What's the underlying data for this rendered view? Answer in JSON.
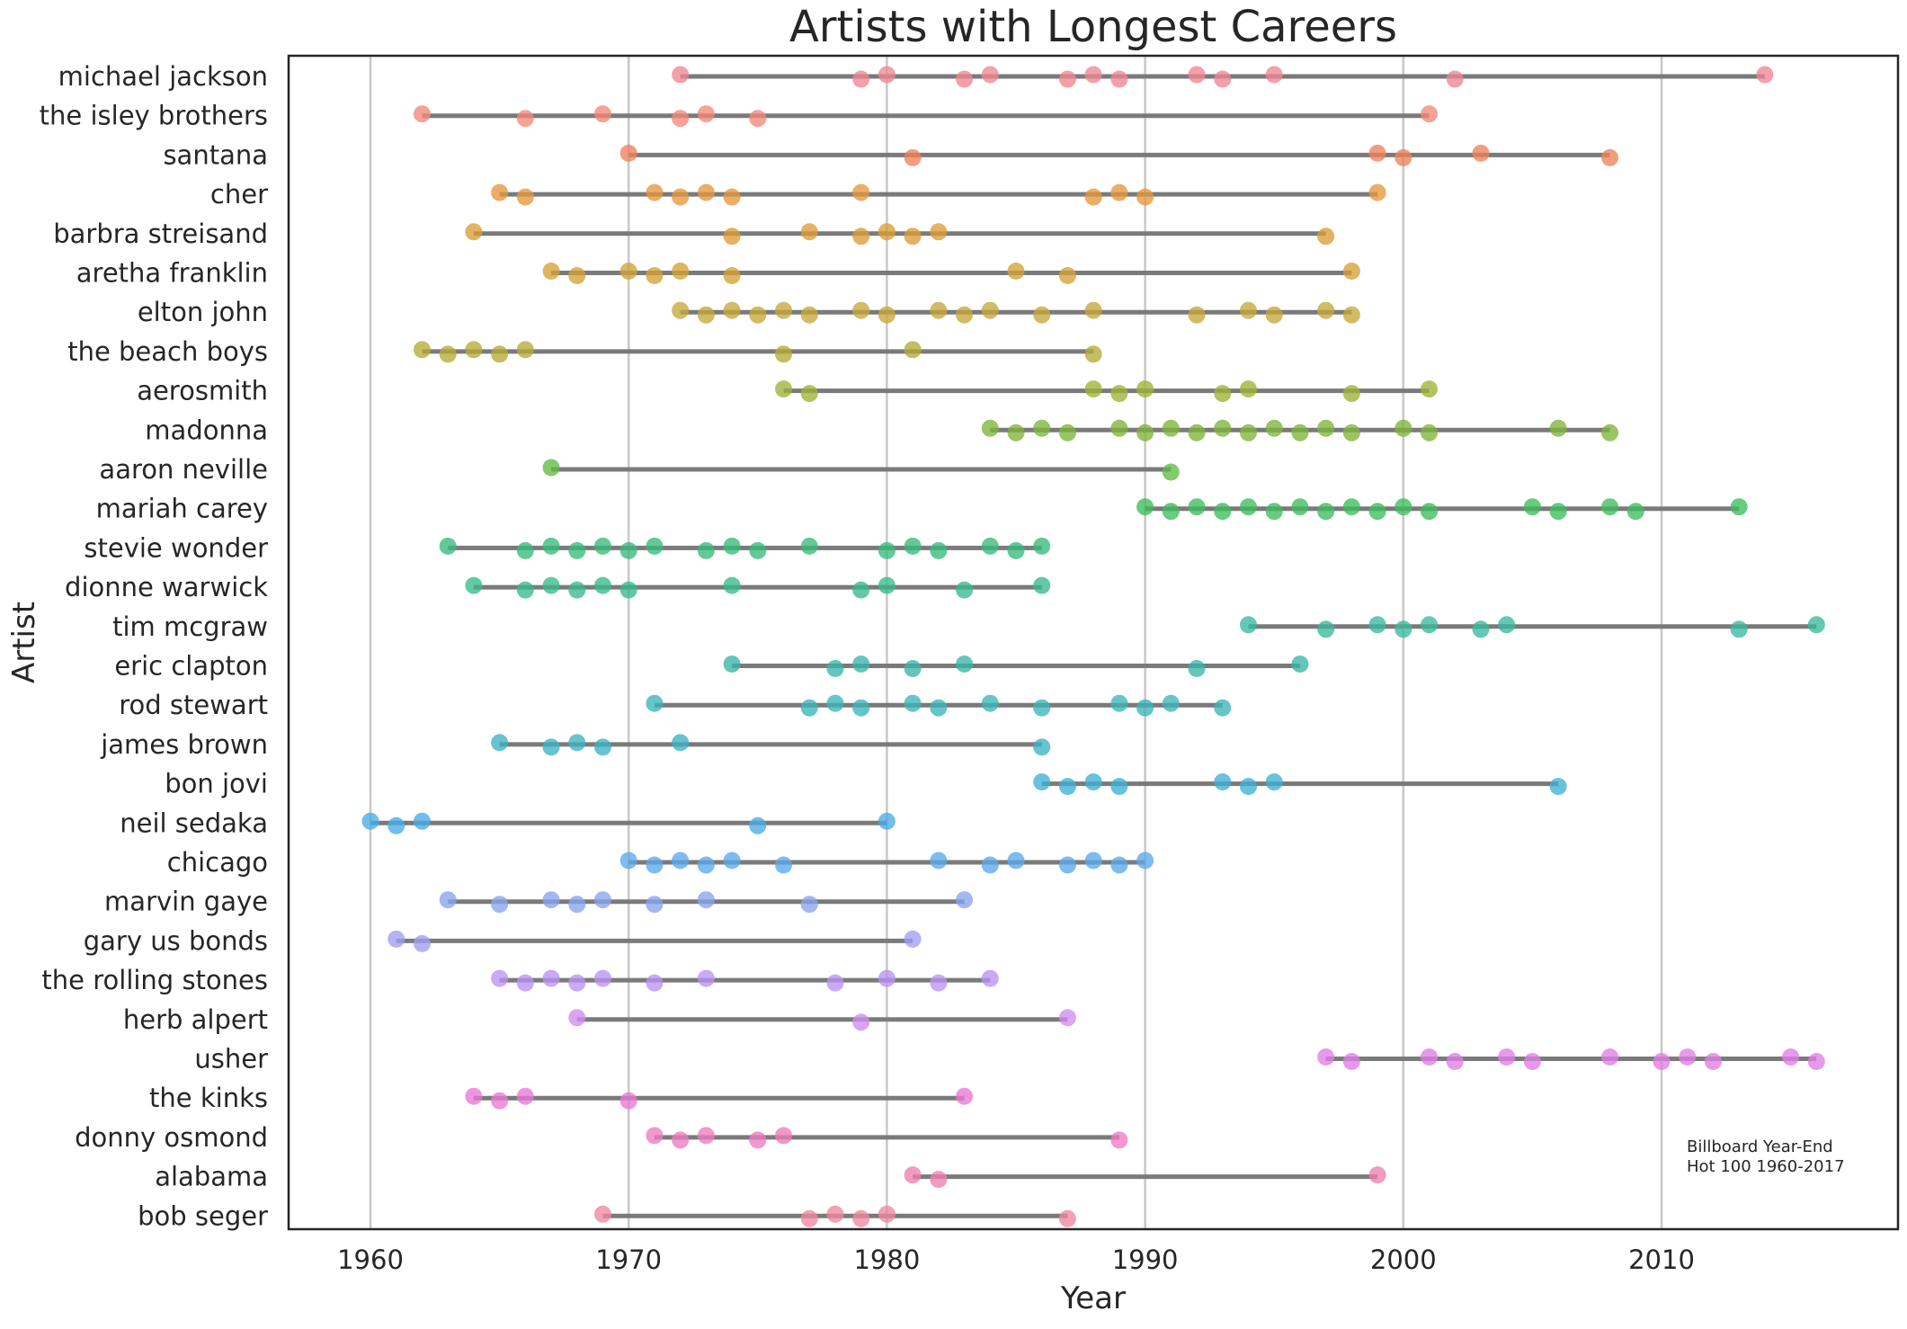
{
  "chart_data": {
    "type": "scatter",
    "title": "Artists with Longest Careers",
    "xlabel": "Year",
    "ylabel": "Artist",
    "xlim": [
      1957,
      2019
    ],
    "x_ticks": [
      1960,
      1970,
      1980,
      1990,
      2000,
      2010
    ],
    "grid": "vertical",
    "annotation": [
      "Billboard Year-End",
      "Hot 100 1960-2017"
    ],
    "series": [
      {
        "name": "michael jackson",
        "color": "#f08592",
        "span": [
          1972,
          2014
        ],
        "points": [
          1972,
          1979,
          1980,
          1983,
          1984,
          1987,
          1988,
          1989,
          1992,
          1993,
          1995,
          2002,
          2014
        ]
      },
      {
        "name": "the isley brothers",
        "color": "#f3887a",
        "span": [
          1962,
          2001
        ],
        "points": [
          1962,
          1966,
          1969,
          1972,
          1973,
          1975,
          2001
        ]
      },
      {
        "name": "santana",
        "color": "#f0825c",
        "span": [
          1970,
          2008
        ],
        "points": [
          1970,
          1981,
          1999,
          2000,
          2003,
          2008
        ]
      },
      {
        "name": "cher",
        "color": "#e5973c",
        "span": [
          1965,
          1999
        ],
        "points": [
          1965,
          1966,
          1971,
          1972,
          1973,
          1974,
          1979,
          1988,
          1989,
          1990,
          1999
        ]
      },
      {
        "name": "barbra streisand",
        "color": "#dd9c37",
        "span": [
          1964,
          1997
        ],
        "points": [
          1964,
          1974,
          1977,
          1979,
          1980,
          1981,
          1982,
          1997
        ]
      },
      {
        "name": "aretha franklin",
        "color": "#d2a236",
        "span": [
          1967,
          1998
        ],
        "points": [
          1967,
          1968,
          1970,
          1971,
          1972,
          1974,
          1985,
          1987,
          1998
        ]
      },
      {
        "name": "elton john",
        "color": "#c6a638",
        "span": [
          1972,
          1998
        ],
        "points": [
          1972,
          1973,
          1974,
          1975,
          1976,
          1977,
          1979,
          1980,
          1982,
          1983,
          1984,
          1986,
          1988,
          1992,
          1994,
          1995,
          1997,
          1998
        ]
      },
      {
        "name": "the beach boys",
        "color": "#b4ab34",
        "span": [
          1962,
          1988
        ],
        "points": [
          1962,
          1963,
          1964,
          1965,
          1966,
          1976,
          1981,
          1988
        ]
      },
      {
        "name": "aerosmith",
        "color": "#9fb236",
        "span": [
          1976,
          2001
        ],
        "points": [
          1976,
          1977,
          1988,
          1989,
          1990,
          1993,
          1994,
          1998,
          2001
        ]
      },
      {
        "name": "madonna",
        "color": "#7fb43a",
        "span": [
          1984,
          2008
        ],
        "points": [
          1984,
          1985,
          1986,
          1987,
          1989,
          1990,
          1991,
          1992,
          1993,
          1994,
          1995,
          1996,
          1997,
          1998,
          2000,
          2001,
          2006,
          2008
        ]
      },
      {
        "name": "aaron neville",
        "color": "#5fbb44",
        "span": [
          1967,
          1991
        ],
        "points": [
          1967,
          1991
        ]
      },
      {
        "name": "mariah carey",
        "color": "#3cbd5c",
        "span": [
          1990,
          2013
        ],
        "points": [
          1990,
          1991,
          1992,
          1993,
          1994,
          1995,
          1996,
          1997,
          1998,
          1999,
          2000,
          2001,
          2005,
          2006,
          2008,
          2009,
          2013
        ]
      },
      {
        "name": "stevie wonder",
        "color": "#36bb78",
        "span": [
          1963,
          1986
        ],
        "points": [
          1963,
          1966,
          1967,
          1968,
          1969,
          1970,
          1971,
          1973,
          1974,
          1975,
          1977,
          1980,
          1981,
          1982,
          1984,
          1985,
          1986
        ]
      },
      {
        "name": "dionne warwick",
        "color": "#37ba8c",
        "span": [
          1964,
          1986
        ],
        "points": [
          1964,
          1966,
          1967,
          1968,
          1969,
          1970,
          1974,
          1979,
          1980,
          1983,
          1986
        ]
      },
      {
        "name": "tim mcgraw",
        "color": "#39b89c",
        "span": [
          1994,
          2016
        ],
        "points": [
          1994,
          1997,
          1999,
          2000,
          2001,
          2003,
          2004,
          2013,
          2016
        ]
      },
      {
        "name": "eric clapton",
        "color": "#38b6a8",
        "span": [
          1974,
          1996
        ],
        "points": [
          1974,
          1978,
          1979,
          1981,
          1983,
          1992,
          1996
        ]
      },
      {
        "name": "rod stewart",
        "color": "#3ab5b8",
        "span": [
          1971,
          1993
        ],
        "points": [
          1971,
          1977,
          1978,
          1979,
          1981,
          1982,
          1984,
          1986,
          1989,
          1990,
          1991,
          1993
        ]
      },
      {
        "name": "james brown",
        "color": "#3db2c4",
        "span": [
          1965,
          1986
        ],
        "points": [
          1965,
          1967,
          1968,
          1969,
          1972,
          1986
        ]
      },
      {
        "name": "bon jovi",
        "color": "#3eafd4",
        "span": [
          1986,
          2006
        ],
        "points": [
          1986,
          1987,
          1988,
          1989,
          1993,
          1994,
          1995,
          2006
        ]
      },
      {
        "name": "neil sedaka",
        "color": "#49aae6",
        "span": [
          1960,
          1980
        ],
        "points": [
          1960,
          1961,
          1962,
          1975,
          1980
        ]
      },
      {
        "name": "chicago",
        "color": "#5aa9ec",
        "span": [
          1970,
          1990
        ],
        "points": [
          1970,
          1971,
          1972,
          1973,
          1974,
          1976,
          1982,
          1984,
          1985,
          1987,
          1988,
          1989,
          1990
        ]
      },
      {
        "name": "marvin gaye",
        "color": "#86a4ec",
        "span": [
          1963,
          1983
        ],
        "points": [
          1963,
          1965,
          1967,
          1968,
          1969,
          1971,
          1973,
          1977,
          1983
        ]
      },
      {
        "name": "gary us bonds",
        "color": "#a09cf2",
        "span": [
          1961,
          1981
        ],
        "points": [
          1961,
          1962,
          1981
        ]
      },
      {
        "name": "the rolling stones",
        "color": "#b892f4",
        "span": [
          1965,
          1984
        ],
        "points": [
          1965,
          1966,
          1967,
          1968,
          1969,
          1971,
          1973,
          1978,
          1980,
          1982,
          1984
        ]
      },
      {
        "name": "herb alpert",
        "color": "#cf8cf0",
        "span": [
          1968,
          1987
        ],
        "points": [
          1968,
          1979,
          1987
        ]
      },
      {
        "name": "usher",
        "color": "#e07ce6",
        "span": [
          1997,
          2016
        ],
        "points": [
          1997,
          1998,
          2001,
          2002,
          2004,
          2005,
          2008,
          2010,
          2011,
          2012,
          2015,
          2016
        ]
      },
      {
        "name": "the kinks",
        "color": "#ea77d6",
        "span": [
          1964,
          1983
        ],
        "points": [
          1964,
          1965,
          1966,
          1970,
          1983
        ]
      },
      {
        "name": "donny osmond",
        "color": "#ef7ac2",
        "span": [
          1971,
          1989
        ],
        "points": [
          1971,
          1972,
          1973,
          1975,
          1976,
          1989
        ]
      },
      {
        "name": "alabama",
        "color": "#f07eb0",
        "span": [
          1981,
          1999
        ],
        "points": [
          1981,
          1982,
          1999
        ]
      },
      {
        "name": "bob seger",
        "color": "#f0869f",
        "span": [
          1969,
          1987
        ],
        "points": [
          1969,
          1977,
          1978,
          1979,
          1980,
          1987
        ]
      }
    ]
  }
}
